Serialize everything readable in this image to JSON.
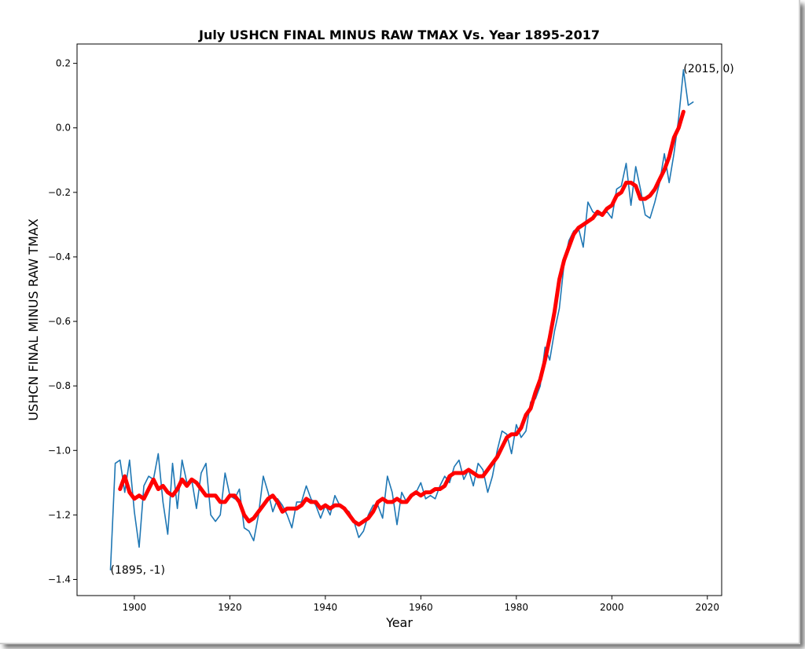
{
  "chart_data": {
    "type": "line",
    "title": "July USHCN FINAL MINUS RAW TMAX Vs. Year 1895-2017",
    "xlabel": "Year",
    "ylabel": "USHCN FINAL MINUS RAW TMAX",
    "xlim": [
      1888,
      2023
    ],
    "ylim": [
      -1.45,
      0.26
    ],
    "xticks": [
      1900,
      1920,
      1940,
      1960,
      1980,
      2000,
      2020
    ],
    "yticks": [
      -1.4,
      -1.2,
      -1.0,
      -0.8,
      -0.6,
      -0.4,
      -0.2,
      0.0,
      0.2
    ],
    "ytick_labels": [
      "−1.4",
      "−1.2",
      "−1.0",
      "−0.8",
      "−0.6",
      "−0.4",
      "−0.2",
      "0.0",
      "0.2"
    ],
    "grid": false,
    "colors": {
      "raw": "#1f77b4",
      "smoothed": "#ff0000"
    },
    "series": [
      {
        "style": "thin-blue",
        "x": [
          1895,
          1896,
          1897,
          1898,
          1899,
          1900,
          1901,
          1902,
          1903,
          1904,
          1905,
          1906,
          1907,
          1908,
          1909,
          1910,
          1911,
          1912,
          1913,
          1914,
          1915,
          1916,
          1917,
          1918,
          1919,
          1920,
          1921,
          1922,
          1923,
          1924,
          1925,
          1926,
          1927,
          1928,
          1929,
          1930,
          1931,
          1932,
          1933,
          1934,
          1935,
          1936,
          1937,
          1938,
          1939,
          1940,
          1941,
          1942,
          1943,
          1944,
          1945,
          1946,
          1947,
          1948,
          1949,
          1950,
          1951,
          1952,
          1953,
          1954,
          1955,
          1956,
          1957,
          1958,
          1959,
          1960,
          1961,
          1962,
          1963,
          1964,
          1965,
          1966,
          1967,
          1968,
          1969,
          1970,
          1971,
          1972,
          1973,
          1974,
          1975,
          1976,
          1977,
          1978,
          1979,
          1980,
          1981,
          1982,
          1983,
          1984,
          1985,
          1986,
          1987,
          1988,
          1989,
          1990,
          1991,
          1992,
          1993,
          1994,
          1995,
          1996,
          1997,
          1998,
          1999,
          2000,
          2001,
          2002,
          2003,
          2004,
          2005,
          2006,
          2007,
          2008,
          2009,
          2010,
          2011,
          2012,
          2013,
          2014,
          2015,
          2016,
          2017
        ],
        "y": [
          -1.37,
          -1.04,
          -1.03,
          -1.13,
          -1.03,
          -1.19,
          -1.3,
          -1.11,
          -1.08,
          -1.09,
          -1.01,
          -1.16,
          -1.26,
          -1.04,
          -1.18,
          -1.03,
          -1.1,
          -1.09,
          -1.18,
          -1.07,
          -1.04,
          -1.2,
          -1.22,
          -1.2,
          -1.07,
          -1.14,
          -1.15,
          -1.12,
          -1.24,
          -1.25,
          -1.28,
          -1.2,
          -1.08,
          -1.13,
          -1.19,
          -1.15,
          -1.17,
          -1.2,
          -1.24,
          -1.16,
          -1.16,
          -1.11,
          -1.15,
          -1.17,
          -1.21,
          -1.17,
          -1.2,
          -1.14,
          -1.17,
          -1.18,
          -1.19,
          -1.22,
          -1.27,
          -1.25,
          -1.2,
          -1.17,
          -1.17,
          -1.21,
          -1.08,
          -1.13,
          -1.23,
          -1.13,
          -1.16,
          -1.14,
          -1.13,
          -1.1,
          -1.15,
          -1.14,
          -1.15,
          -1.11,
          -1.08,
          -1.1,
          -1.05,
          -1.03,
          -1.09,
          -1.06,
          -1.11,
          -1.04,
          -1.06,
          -1.13,
          -1.08,
          -1.0,
          -0.94,
          -0.95,
          -1.01,
          -0.92,
          -0.96,
          -0.94,
          -0.85,
          -0.84,
          -0.8,
          -0.68,
          -0.72,
          -0.63,
          -0.56,
          -0.42,
          -0.35,
          -0.32,
          -0.31,
          -0.37,
          -0.23,
          -0.26,
          -0.27,
          -0.27,
          -0.26,
          -0.28,
          -0.19,
          -0.18,
          -0.11,
          -0.24,
          -0.12,
          -0.19,
          -0.27,
          -0.28,
          -0.23,
          -0.17,
          -0.08,
          -0.17,
          -0.08,
          0.03,
          0.18,
          0.07,
          0.08
        ]
      },
      {
        "style": "thick-red",
        "x": [
          1897,
          1898,
          1899,
          1900,
          1901,
          1902,
          1903,
          1904,
          1905,
          1906,
          1907,
          1908,
          1909,
          1910,
          1911,
          1912,
          1913,
          1914,
          1915,
          1916,
          1917,
          1918,
          1919,
          1920,
          1921,
          1922,
          1923,
          1924,
          1925,
          1926,
          1927,
          1928,
          1929,
          1930,
          1931,
          1932,
          1933,
          1934,
          1935,
          1936,
          1937,
          1938,
          1939,
          1940,
          1941,
          1942,
          1943,
          1944,
          1945,
          1946,
          1947,
          1948,
          1949,
          1950,
          1951,
          1952,
          1953,
          1954,
          1955,
          1956,
          1957,
          1958,
          1959,
          1960,
          1961,
          1962,
          1963,
          1964,
          1965,
          1966,
          1967,
          1968,
          1969,
          1970,
          1971,
          1972,
          1973,
          1974,
          1975,
          1976,
          1977,
          1978,
          1979,
          1980,
          1981,
          1982,
          1983,
          1984,
          1985,
          1986,
          1987,
          1988,
          1989,
          1990,
          1991,
          1992,
          1993,
          1994,
          1995,
          1996,
          1997,
          1998,
          1999,
          2000,
          2001,
          2002,
          2003,
          2004,
          2005,
          2006,
          2007,
          2008,
          2009,
          2010,
          2011,
          2012,
          2013,
          2014,
          2015
        ],
        "y": [
          -1.12,
          -1.08,
          -1.13,
          -1.15,
          -1.14,
          -1.15,
          -1.12,
          -1.09,
          -1.12,
          -1.11,
          -1.13,
          -1.14,
          -1.12,
          -1.09,
          -1.11,
          -1.09,
          -1.1,
          -1.12,
          -1.14,
          -1.14,
          -1.14,
          -1.16,
          -1.16,
          -1.14,
          -1.14,
          -1.16,
          -1.2,
          -1.22,
          -1.21,
          -1.19,
          -1.17,
          -1.15,
          -1.14,
          -1.16,
          -1.19,
          -1.18,
          -1.18,
          -1.18,
          -1.17,
          -1.15,
          -1.16,
          -1.16,
          -1.18,
          -1.17,
          -1.18,
          -1.17,
          -1.17,
          -1.18,
          -1.2,
          -1.22,
          -1.23,
          -1.22,
          -1.21,
          -1.19,
          -1.16,
          -1.15,
          -1.16,
          -1.16,
          -1.15,
          -1.16,
          -1.16,
          -1.14,
          -1.13,
          -1.14,
          -1.13,
          -1.13,
          -1.12,
          -1.12,
          -1.11,
          -1.08,
          -1.07,
          -1.07,
          -1.07,
          -1.06,
          -1.07,
          -1.08,
          -1.08,
          -1.06,
          -1.04,
          -1.02,
          -0.99,
          -0.96,
          -0.95,
          -0.95,
          -0.93,
          -0.89,
          -0.87,
          -0.82,
          -0.78,
          -0.72,
          -0.65,
          -0.57,
          -0.47,
          -0.41,
          -0.37,
          -0.33,
          -0.31,
          -0.3,
          -0.29,
          -0.28,
          -0.26,
          -0.27,
          -0.25,
          -0.24,
          -0.21,
          -0.2,
          -0.17,
          -0.17,
          -0.18,
          -0.22,
          -0.22,
          -0.21,
          -0.19,
          -0.16,
          -0.13,
          -0.09,
          -0.03,
          0.0,
          0.05
        ]
      }
    ],
    "annotations": [
      {
        "text": "(1895, -1)",
        "x": 1895,
        "y": -1.37
      },
      {
        "text": "(2015, 0)",
        "x": 2015,
        "y": 0.185
      }
    ]
  }
}
